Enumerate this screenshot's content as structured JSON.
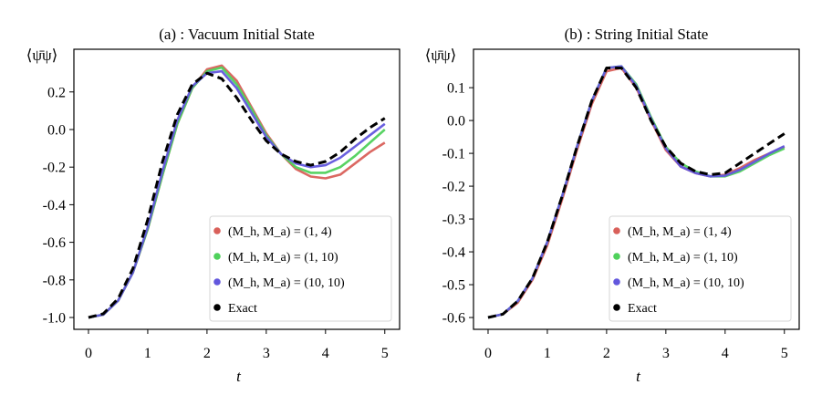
{
  "chart_data": [
    {
      "type": "line",
      "title": "(a) : Vacuum Initial State",
      "xlabel": "t",
      "ylabel": "⟨ψ̄ψ⟩",
      "xlim": [
        -0.246,
        5.25
      ],
      "ylim": [
        -1.063,
        0.427
      ],
      "xticks": [
        0,
        1,
        2,
        3,
        4,
        5
      ],
      "xtick_labels": [
        "0",
        "1",
        "2",
        "3",
        "4",
        "5"
      ],
      "yticks": [
        -1.0,
        -0.8,
        -0.6,
        -0.4,
        -0.2,
        0.0,
        0.2
      ],
      "ytick_labels": [
        "-1.0",
        "-0.8",
        "-0.6",
        "-0.4",
        "-0.2",
        "0.0",
        "0.2"
      ],
      "grid": false,
      "legend_placement": "lower-right",
      "x": [
        0,
        0.25,
        0.5,
        0.75,
        1.0,
        1.25,
        1.5,
        1.75,
        2.0,
        2.25,
        2.5,
        2.75,
        3.0,
        3.25,
        3.5,
        3.75,
        4.0,
        4.25,
        4.5,
        4.75,
        5.0
      ],
      "series": [
        {
          "name": "(Mh, Ma) = (1, 4)",
          "legend_label": "(M_h, M_a) = (1, 4)",
          "color": "#d9605a",
          "style": "solid",
          "values": [
            -1.0,
            -0.985,
            -0.91,
            -0.76,
            -0.53,
            -0.24,
            0.03,
            0.22,
            0.32,
            0.34,
            0.26,
            0.12,
            -0.02,
            -0.13,
            -0.21,
            -0.25,
            -0.26,
            -0.24,
            -0.18,
            -0.12,
            -0.07
          ]
        },
        {
          "name": "(Mh, Ma) = (1, 10)",
          "legend_label": "(M_h, M_a) = (1, 10)",
          "color": "#4fd15b",
          "style": "solid",
          "values": [
            -1.0,
            -0.985,
            -0.91,
            -0.76,
            -0.53,
            -0.24,
            0.03,
            0.22,
            0.31,
            0.33,
            0.24,
            0.11,
            -0.03,
            -0.13,
            -0.2,
            -0.23,
            -0.23,
            -0.2,
            -0.14,
            -0.07,
            0.0
          ]
        },
        {
          "name": "(Mh, Ma) = (10, 10)",
          "legend_label": "(M_h, M_a) = (10, 10)",
          "color": "#6257dd",
          "style": "solid",
          "values": [
            -1.0,
            -0.985,
            -0.91,
            -0.76,
            -0.52,
            -0.22,
            0.05,
            0.23,
            0.3,
            0.31,
            0.22,
            0.09,
            -0.04,
            -0.13,
            -0.18,
            -0.2,
            -0.19,
            -0.15,
            -0.09,
            -0.03,
            0.03
          ]
        },
        {
          "name": "Exact",
          "legend_label": "Exact",
          "color": "#000000",
          "style": "dashed",
          "values": [
            -1.0,
            -0.98,
            -0.9,
            -0.74,
            -0.48,
            -0.17,
            0.08,
            0.24,
            0.3,
            0.27,
            0.17,
            0.05,
            -0.06,
            -0.13,
            -0.17,
            -0.19,
            -0.17,
            -0.12,
            -0.05,
            0.01,
            0.06
          ]
        }
      ]
    },
    {
      "type": "line",
      "title": "(b) : String Initial State",
      "xlabel": "t",
      "ylabel": "⟨ψ̄ψ⟩",
      "xlim": [
        -0.246,
        5.25
      ],
      "ylim": [
        -0.636,
        0.217
      ],
      "xticks": [
        0,
        1,
        2,
        3,
        4,
        5
      ],
      "xtick_labels": [
        "0",
        "1",
        "2",
        "3",
        "4",
        "5"
      ],
      "yticks": [
        -0.6,
        -0.5,
        -0.4,
        -0.3,
        -0.2,
        -0.1,
        0.0,
        0.1
      ],
      "ytick_labels": [
        "-0.6",
        "-0.5",
        "-0.4",
        "-0.3",
        "-0.2",
        "-0.1",
        "0.0",
        "0.1"
      ],
      "grid": false,
      "legend_placement": "lower-right",
      "x": [
        0,
        0.25,
        0.5,
        0.75,
        1.0,
        1.25,
        1.5,
        1.75,
        2.0,
        2.25,
        2.5,
        2.75,
        3.0,
        3.25,
        3.5,
        3.75,
        4.0,
        4.25,
        4.5,
        4.75,
        5.0
      ],
      "series": [
        {
          "name": "(Mh, Ma) = (1, 4)",
          "legend_label": "(M_h, M_a) = (1, 4)",
          "color": "#d9605a",
          "style": "solid",
          "values": [
            -0.6,
            -0.59,
            -0.555,
            -0.485,
            -0.38,
            -0.24,
            -0.09,
            0.05,
            0.15,
            0.16,
            0.1,
            0.0,
            -0.09,
            -0.14,
            -0.16,
            -0.17,
            -0.165,
            -0.145,
            -0.12,
            -0.1,
            -0.08
          ]
        },
        {
          "name": "(Mh, Ma) = (1, 10)",
          "legend_label": "(M_h, M_a) = (1, 10)",
          "color": "#4fd15b",
          "style": "solid",
          "values": [
            -0.6,
            -0.59,
            -0.55,
            -0.48,
            -0.37,
            -0.23,
            -0.08,
            0.06,
            0.16,
            0.165,
            0.11,
            0.01,
            -0.08,
            -0.13,
            -0.155,
            -0.17,
            -0.17,
            -0.155,
            -0.13,
            -0.105,
            -0.085
          ]
        },
        {
          "name": "(Mh, Ma) = (10, 10)",
          "legend_label": "(M_h, M_a) = (10, 10)",
          "color": "#6257dd",
          "style": "solid",
          "values": [
            -0.6,
            -0.59,
            -0.55,
            -0.48,
            -0.37,
            -0.23,
            -0.08,
            0.06,
            0.16,
            0.165,
            0.105,
            0.005,
            -0.085,
            -0.14,
            -0.16,
            -0.17,
            -0.168,
            -0.15,
            -0.125,
            -0.1,
            -0.078
          ]
        },
        {
          "name": "Exact",
          "legend_label": "Exact",
          "color": "#000000",
          "style": "dashed",
          "values": [
            -0.6,
            -0.59,
            -0.55,
            -0.48,
            -0.37,
            -0.23,
            -0.08,
            0.06,
            0.16,
            0.16,
            0.1,
            0.0,
            -0.08,
            -0.13,
            -0.155,
            -0.165,
            -0.16,
            -0.13,
            -0.1,
            -0.07,
            -0.04
          ]
        }
      ]
    }
  ]
}
